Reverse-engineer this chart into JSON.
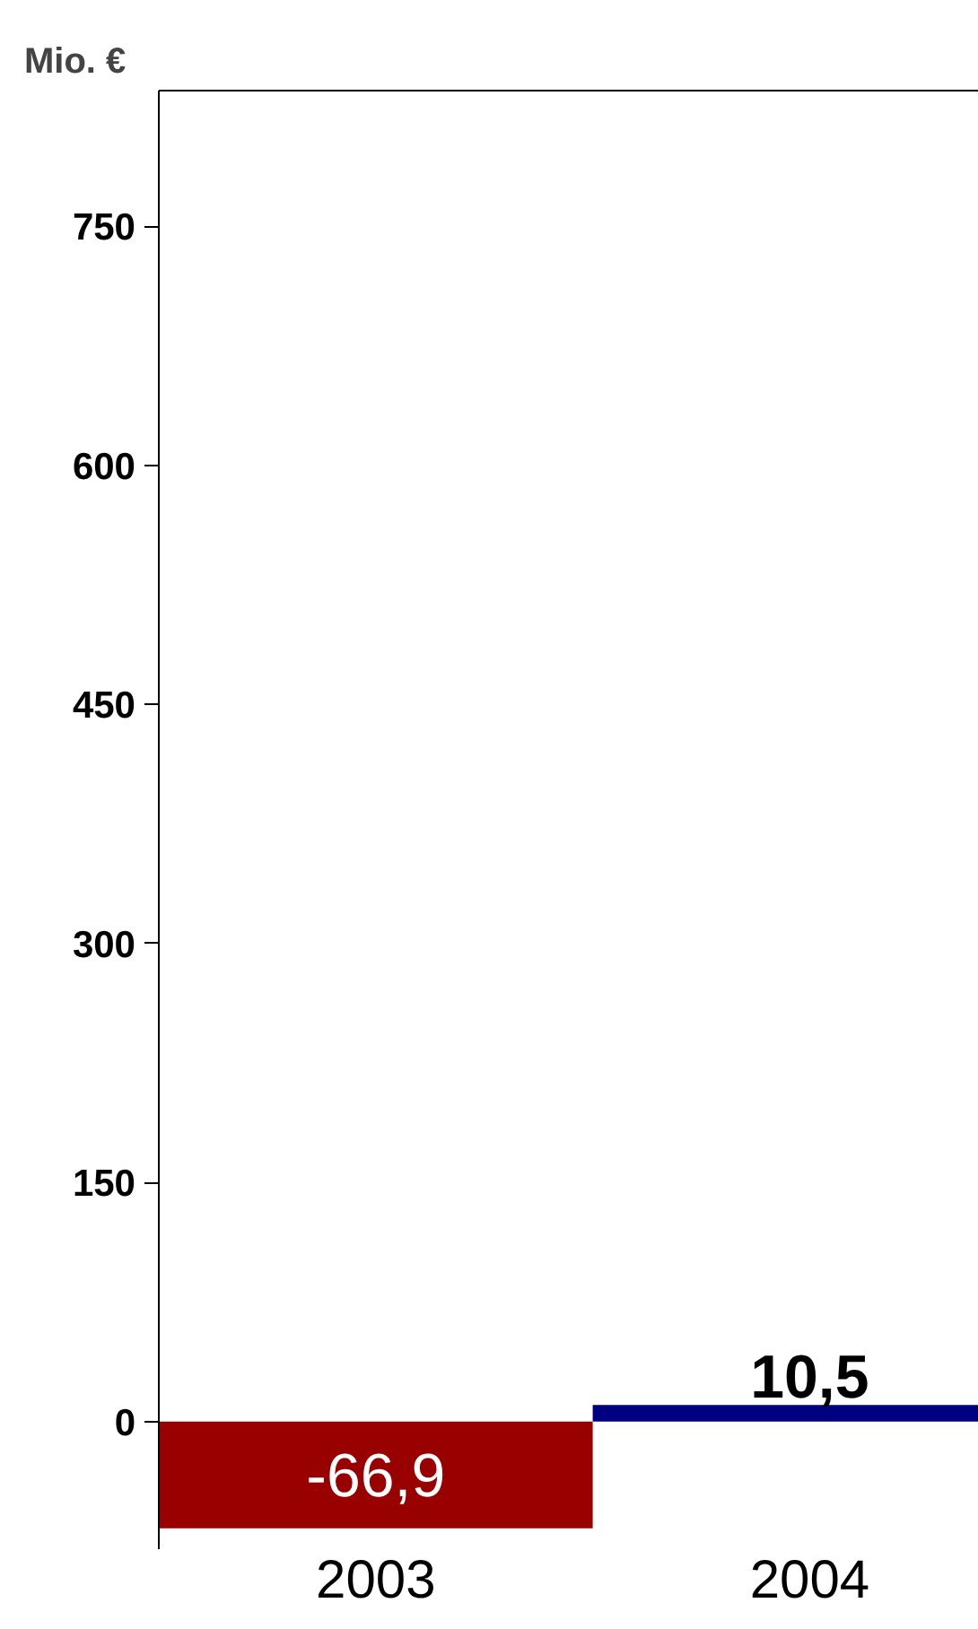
{
  "chart_data": {
    "type": "bar",
    "ylabel": "Mio. €",
    "categories": [
      "2003",
      "2004"
    ],
    "values": [
      -66.9,
      10.5
    ],
    "colors": [
      "#990000",
      "#000080"
    ],
    "value_labels": [
      "-66,9",
      "10,5"
    ],
    "ylim": [
      -80,
      835
    ],
    "yticks": [
      0,
      150,
      300,
      450,
      600,
      750
    ],
    "grid": false
  }
}
